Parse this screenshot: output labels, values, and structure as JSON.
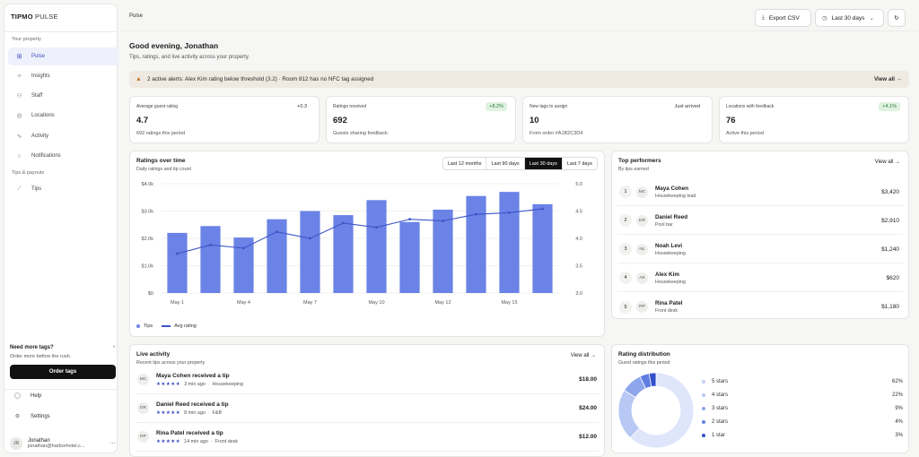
{
  "sidebar": {
    "brand_bold": "TIPMO",
    "brand_light": "PULSE",
    "section_property": "Your property",
    "items": [
      {
        "label": "Pulse",
        "icon": "grid-icon"
      },
      {
        "label": "Insights",
        "icon": "sparkle-icon"
      },
      {
        "label": "Staff",
        "icon": "people-icon"
      },
      {
        "label": "Locations",
        "icon": "pin-icon"
      },
      {
        "label": "Activity",
        "icon": "pulse-icon"
      },
      {
        "label": "Notifications",
        "icon": "bell-icon"
      }
    ],
    "section_tips": "Tips & payouts",
    "tips_item": "Tips",
    "promo": {
      "title": "Need more tags?",
      "subtitle": "Order more before the rush.",
      "button": "Order tags"
    },
    "help": "Help",
    "settings": "Settings",
    "user": {
      "initials": "JR",
      "name": "Jonathan",
      "email": "jonathan@harborhotel.c..."
    }
  },
  "topbar": {
    "breadcrumb": "Pulse",
    "export": "Export CSV",
    "range": "Last 30 days"
  },
  "greeting": {
    "title": "Good evening, Jonathan",
    "subtitle": "Tips, ratings, and live activity across your property."
  },
  "alert": {
    "text": "2 active alerts: Alex Kim rating below threshold (3.2) · Room 812 has no NFC tag assigned",
    "action": "View all →"
  },
  "kpis": [
    {
      "label": "Average guest rating",
      "value": "4.7",
      "sub": "692 ratings this period",
      "delta": "+0.3"
    },
    {
      "label": "Ratings received",
      "value": "692",
      "sub": "Guests sharing feedback",
      "delta": "+8.2%"
    },
    {
      "label": "New tags to assign",
      "value": "10",
      "sub": "From order #A1B2C3D4",
      "delta": "Just arrived"
    },
    {
      "label": "Locations with feedback",
      "value": "76",
      "sub": "Active this period",
      "delta": "+4.1%"
    }
  ],
  "ratings_chart": {
    "title": "Ratings over time",
    "subtitle": "Daily ratings and tip count",
    "tabs": [
      "Last 12 months",
      "Last 90 days",
      "Last 30 days",
      "Last 7 days"
    ],
    "active_tab": "Last 30 days",
    "legend_tips": "Tips",
    "legend_avg": "Avg rating"
  },
  "chart_data": {
    "type": "bar",
    "x_tick_labels": [
      "May 1",
      "May 4",
      "May 7",
      "May 10",
      "May 12",
      "May 15"
    ],
    "bar_count": 12,
    "left_axis": {
      "ticks": [
        "$0",
        "$1.0k",
        "$2.0k",
        "$3.0k",
        "$4.0k"
      ],
      "ylim": [
        0,
        4000
      ]
    },
    "right_axis": {
      "ticks": [
        "3.0",
        "3.5",
        "4.0",
        "4.5",
        "5.0"
      ],
      "ylim": [
        3.0,
        5.0
      ]
    },
    "series": [
      {
        "name": "Tips",
        "type": "bar",
        "color": "#6b83e6",
        "values": [
          2200,
          2450,
          2030,
          2700,
          3000,
          2850,
          3400,
          2600,
          3050,
          3550,
          3700,
          3250
        ]
      },
      {
        "name": "Avg rating",
        "type": "line",
        "color": "#3d55c7",
        "values": [
          3.72,
          3.88,
          3.82,
          4.12,
          4.0,
          4.28,
          4.2,
          4.35,
          4.32,
          4.44,
          4.47,
          4.54
        ]
      }
    ],
    "grid": true
  },
  "performers": {
    "title": "Top performers",
    "subtitle": "By tips earned",
    "view_all": "View all →",
    "rows": [
      {
        "rank": "1",
        "initials": "MC",
        "name": "Maya Cohen",
        "role": "Housekeeping lead",
        "amount": "$3,420"
      },
      {
        "rank": "2",
        "initials": "DR",
        "name": "Daniel Reed",
        "role": "Pool bar",
        "amount": "$2,910"
      },
      {
        "rank": "3",
        "initials": "NL",
        "name": "Noah Levi",
        "role": "Housekeeping",
        "amount": "$1,240"
      },
      {
        "rank": "4",
        "initials": "AK",
        "name": "Alex Kim",
        "role": "Housekeeping",
        "amount": "$620"
      },
      {
        "rank": "5",
        "initials": "RP",
        "name": "Rina Patel",
        "role": "Front desk",
        "amount": "$1,180"
      }
    ]
  },
  "activity": {
    "title": "Live activity",
    "subtitle": "Recent tips across your property",
    "view_all": "View all →",
    "rows": [
      {
        "initials": "MC",
        "title": "Maya Cohen received a tip",
        "stars": "★★★★★",
        "time": "3 min ago",
        "place": "Housekeeping",
        "amount": "$18.00"
      },
      {
        "initials": "DR",
        "title": "Daniel Reed received a tip",
        "stars": "★★★★★",
        "time": "8 min ago",
        "place": "F&B",
        "amount": "$24.00"
      },
      {
        "initials": "RP",
        "title": "Rina Patel received a tip",
        "stars": "★★★★★",
        "time": "14 min ago",
        "place": "Front desk",
        "amount": "$12.00"
      }
    ]
  },
  "distribution": {
    "title": "Rating distribution",
    "subtitle": "Guest ratings this period",
    "rows": [
      {
        "label": "5 stars",
        "pct": "62%",
        "value": 62,
        "color": "#dfe6fb"
      },
      {
        "label": "4 stars",
        "pct": "22%",
        "value": 22,
        "color": "#b8c8f4"
      },
      {
        "label": "3 stars",
        "pct": "9%",
        "value": 9,
        "color": "#8ea6ec"
      },
      {
        "label": "2 stars",
        "pct": "4%",
        "value": 4,
        "color": "#5f7ee1"
      },
      {
        "label": "1 star",
        "pct": "3%",
        "value": 3,
        "color": "#3451c9"
      }
    ]
  }
}
